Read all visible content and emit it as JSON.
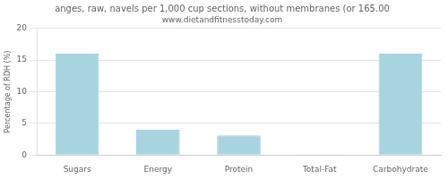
{
  "chart_data": {
    "type": "bar",
    "title": "anges, raw, navels per 1,000 cup sections, without membranes (or 165.00",
    "subtitle": "www.dietandfitnesstoday.com",
    "categories": [
      "Sugars",
      "Energy",
      "Protein",
      "Total-Fat",
      "Carbohydrate"
    ],
    "values": [
      16.0,
      4.0,
      3.1,
      0.1,
      16.0
    ],
    "color": "#a8d4e0",
    "ylabel": "Percentage of RDH (%)",
    "ylim": [
      0,
      20
    ],
    "yticks": [
      0,
      5,
      10,
      15,
      20
    ],
    "grid": true
  }
}
